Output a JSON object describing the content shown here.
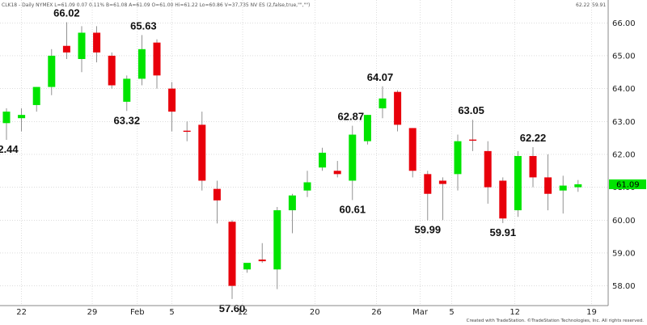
{
  "header": {
    "symbol_info": "CLK18 - Daily NYMEX L=61.09 0.07 0.11% B=61.08 A=61.09 O=61.00 Hi=61.22 Lo=60.86 V=37,735 NV ES (2,false,true,\"\",\"\")",
    "val1": "62.22",
    "val2": "59.91",
    "val1_color": "#e8000b",
    "val2_color": "#1a1aff"
  },
  "footer": {
    "credit": "Created with TradeStation. ©TradeStation Technologies, Inc. All rights reserved."
  },
  "colors": {
    "up": "#00e400",
    "down": "#e8000b",
    "grid": "#c8c8c8",
    "last_price_tag": "#00e400"
  },
  "chart_data": {
    "type": "candlestick",
    "y_axis": {
      "min": 57.4,
      "max": 66.4,
      "ticks": [
        "58.00",
        "59.00",
        "60.00",
        "61.00",
        "62.00",
        "63.00",
        "64.00",
        "65.00",
        "66.00"
      ]
    },
    "x_axis": {
      "ticks": [
        "22",
        "29",
        "Feb",
        "5",
        "12",
        "20",
        "26",
        "Mar",
        "5",
        "12",
        "19"
      ]
    },
    "last_price": "61.09",
    "annotations": [
      "2.44",
      "66.02",
      "65.63",
      "63.32",
      "57.60",
      "62.87",
      "60.61",
      "64.07",
      "59.99",
      "63.05",
      "59.91",
      "62.22"
    ],
    "candles": [
      {
        "o": 62.95,
        "h": 63.4,
        "l": 62.44,
        "c": 63.3
      },
      {
        "o": 63.1,
        "h": 63.4,
        "l": 62.7,
        "c": 63.2
      },
      {
        "o": 63.5,
        "h": 64.05,
        "l": 63.3,
        "c": 64.05
      },
      {
        "o": 64.05,
        "h": 65.2,
        "l": 63.8,
        "c": 65.0
      },
      {
        "o": 65.3,
        "h": 66.02,
        "l": 64.9,
        "c": 65.1
      },
      {
        "o": 64.9,
        "h": 65.9,
        "l": 64.5,
        "c": 65.7
      },
      {
        "o": 65.7,
        "h": 65.9,
        "l": 64.8,
        "c": 65.1
      },
      {
        "o": 65.0,
        "h": 65.1,
        "l": 64.0,
        "c": 64.1
      },
      {
        "o": 63.6,
        "h": 64.4,
        "l": 63.32,
        "c": 64.3
      },
      {
        "o": 64.3,
        "h": 65.63,
        "l": 64.1,
        "c": 65.2
      },
      {
        "o": 65.4,
        "h": 65.5,
        "l": 64.0,
        "c": 64.4
      },
      {
        "o": 64.0,
        "h": 64.2,
        "l": 62.7,
        "c": 63.3
      },
      {
        "o": 62.72,
        "h": 63.0,
        "l": 62.4,
        "c": 62.7
      },
      {
        "o": 62.9,
        "h": 63.3,
        "l": 60.9,
        "c": 61.2
      },
      {
        "o": 60.95,
        "h": 61.2,
        "l": 59.9,
        "c": 60.6
      },
      {
        "o": 59.95,
        "h": 60.0,
        "l": 57.6,
        "c": 58.0
      },
      {
        "o": 58.5,
        "h": 58.65,
        "l": 58.4,
        "c": 58.7
      },
      {
        "o": 58.8,
        "h": 59.3,
        "l": 58.7,
        "c": 58.75
      },
      {
        "o": 58.5,
        "h": 60.4,
        "l": 57.9,
        "c": 60.3
      },
      {
        "o": 60.3,
        "h": 60.8,
        "l": 59.6,
        "c": 60.75
      },
      {
        "o": 60.9,
        "h": 61.5,
        "l": 60.7,
        "c": 61.15
      },
      {
        "o": 61.6,
        "h": 62.2,
        "l": 61.5,
        "c": 62.05
      },
      {
        "o": 61.5,
        "h": 61.8,
        "l": 61.3,
        "c": 61.4
      },
      {
        "o": 61.2,
        "h": 62.87,
        "l": 60.61,
        "c": 62.6
      },
      {
        "o": 62.4,
        "h": 63.2,
        "l": 62.3,
        "c": 63.2
      },
      {
        "o": 63.4,
        "h": 64.07,
        "l": 63.1,
        "c": 63.7
      },
      {
        "o": 63.9,
        "h": 63.95,
        "l": 62.7,
        "c": 62.9
      },
      {
        "o": 62.8,
        "h": 62.8,
        "l": 61.3,
        "c": 61.5
      },
      {
        "o": 61.4,
        "h": 61.5,
        "l": 59.99,
        "c": 60.8
      },
      {
        "o": 61.2,
        "h": 61.3,
        "l": 60.0,
        "c": 61.1
      },
      {
        "o": 61.4,
        "h": 62.6,
        "l": 60.9,
        "c": 62.4
      },
      {
        "o": 62.45,
        "h": 63.05,
        "l": 62.1,
        "c": 62.42
      },
      {
        "o": 62.1,
        "h": 62.4,
        "l": 60.5,
        "c": 61.0
      },
      {
        "o": 61.2,
        "h": 61.3,
        "l": 59.91,
        "c": 60.05
      },
      {
        "o": 60.3,
        "h": 62.1,
        "l": 60.1,
        "c": 61.95
      },
      {
        "o": 61.95,
        "h": 62.22,
        "l": 61.0,
        "c": 61.3
      },
      {
        "o": 61.3,
        "h": 62.0,
        "l": 60.3,
        "c": 60.8
      },
      {
        "o": 60.9,
        "h": 61.35,
        "l": 60.2,
        "c": 61.05
      },
      {
        "o": 61.0,
        "h": 61.22,
        "l": 60.86,
        "c": 61.09
      }
    ]
  }
}
